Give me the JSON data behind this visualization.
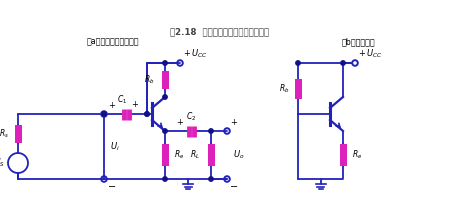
{
  "bg_color": "#ffffff",
  "line_color": "#2222bb",
  "component_color": "#dd22bb",
  "dot_color": "#111188",
  "figsize": [
    4.53,
    2.11
  ],
  "dpi": 100,
  "title_a": "（a）共集电极放大电路",
  "title_b": "（b）直流通路",
  "caption": "图2.18  共集电极放大电路及直流通路"
}
